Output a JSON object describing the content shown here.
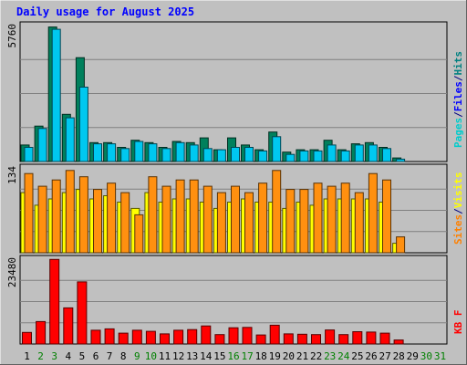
{
  "chart_data": {
    "type": "bar",
    "title": "Daily usage for August 2025",
    "categories": [
      "1",
      "2",
      "3",
      "4",
      "5",
      "6",
      "7",
      "8",
      "9",
      "10",
      "11",
      "12",
      "13",
      "14",
      "15",
      "16",
      "17",
      "18",
      "19",
      "20",
      "21",
      "22",
      "23",
      "24",
      "25",
      "26",
      "27",
      "28",
      "29",
      "30",
      "31"
    ],
    "weekend_days": [
      "2",
      "3",
      "9",
      "10",
      "16",
      "17",
      "23",
      "24",
      "30",
      "31"
    ],
    "panels": [
      {
        "id": "hits-files-pages",
        "ymax_label": "5760",
        "ymax": 5760,
        "axis_labels": [
          {
            "text": "Pages",
            "color": "#00cccc"
          },
          {
            "text": "/",
            "color": "#000080"
          },
          {
            "text": "Files",
            "color": "#0000ff"
          },
          {
            "text": "/",
            "color": "#000080"
          },
          {
            "text": "Hits",
            "color": "#008080"
          }
        ],
        "series": [
          {
            "name": "Hits",
            "color": "#00805c",
            "values": [
              700,
              1500,
              5700,
              2000,
              4400,
              800,
              800,
              600,
              900,
              800,
              600,
              850,
              800,
              1000,
              500,
              1000,
              700,
              500,
              1250,
              400,
              500,
              500,
              900,
              500,
              750,
              800,
              600,
              150,
              0,
              0,
              0
            ]
          },
          {
            "name": "Files",
            "color": "#00c8f0",
            "values": [
              600,
              1400,
              5600,
              1850,
              3150,
              750,
              750,
              550,
              850,
              750,
              550,
              800,
              700,
              550,
              500,
              600,
              600,
              450,
              1050,
              300,
              450,
              450,
              700,
              450,
              700,
              700,
              550,
              100,
              0,
              0,
              0
            ]
          }
        ]
      },
      {
        "id": "visits-sites",
        "ymax_label": "134",
        "ymax": 134,
        "axis_labels": [
          {
            "text": "Sites",
            "color": "#ff8000"
          },
          {
            "text": "/",
            "color": "#000080"
          },
          {
            "text": "Visits",
            "color": "#ffff00"
          }
        ],
        "series": [
          {
            "name": "Visits",
            "color": "#ffff00",
            "values": [
              95,
              75,
              85,
              95,
              100,
              85,
              90,
              80,
              70,
              95,
              80,
              85,
              85,
              80,
              70,
              80,
              85,
              80,
              80,
              70,
              80,
              75,
              85,
              85,
              85,
              85,
              80,
              15,
              0,
              0,
              0
            ]
          },
          {
            "name": "Sites",
            "color": "#ff9010",
            "values": [
              125,
              105,
              115,
              130,
              120,
              100,
              110,
              95,
              60,
              120,
              105,
              115,
              115,
              105,
              95,
              105,
              95,
              110,
              130,
              100,
              100,
              110,
              105,
              110,
              95,
              125,
              115,
              25,
              0,
              0,
              0
            ]
          }
        ]
      },
      {
        "id": "kbytes",
        "ymax_label": "23480",
        "ymax": 23480,
        "axis_labels": [
          {
            "text": "KB F",
            "color": "#ff0000"
          }
        ],
        "series": [
          {
            "name": "KB F",
            "color": "#ff0000",
            "values": [
              3200,
              6200,
              23400,
              10000,
              17200,
              3800,
              4200,
              3000,
              3800,
              3500,
              2800,
              3800,
              4000,
              5000,
              2600,
              4500,
              4600,
              2500,
              5200,
              2800,
              2700,
              2600,
              3900,
              2600,
              3400,
              3300,
              3000,
              1100,
              0,
              0,
              0
            ]
          }
        ]
      }
    ]
  }
}
